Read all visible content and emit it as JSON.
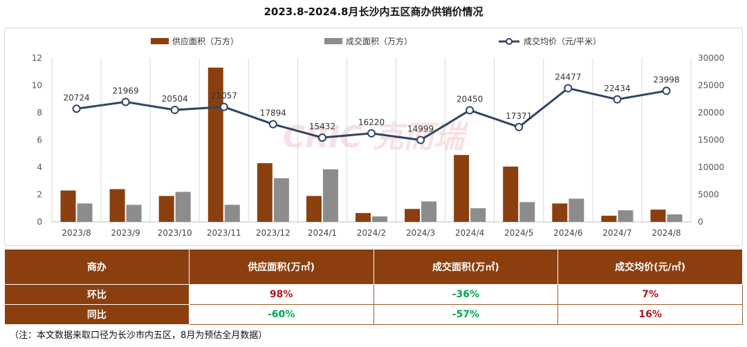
{
  "title": "2023.8-2024.8月长沙内五区商办供销价情况",
  "watermark": "CRIC 克而瑞",
  "chart_data": {
    "type": "bar+line",
    "categories": [
      "2023/8",
      "2023/9",
      "2023/10",
      "2023/11",
      "2023/12",
      "2024/1",
      "2024/2",
      "2024/3",
      "2024/4",
      "2024/5",
      "2024/6",
      "2024/7",
      "2024/8"
    ],
    "series": [
      {
        "name": "供应面积（万方）",
        "type": "bar",
        "axis": "left",
        "color": "#8b3f0f",
        "values": [
          2.3,
          2.4,
          1.9,
          11.3,
          4.3,
          1.9,
          0.65,
          0.95,
          4.9,
          4.05,
          1.35,
          0.45,
          0.9
        ]
      },
      {
        "name": "成交面积（万方）",
        "type": "bar",
        "axis": "left",
        "color": "#8c8c8c",
        "values": [
          1.35,
          1.25,
          2.2,
          1.25,
          3.2,
          3.85,
          0.4,
          1.5,
          1.0,
          1.45,
          1.7,
          0.85,
          0.55
        ]
      },
      {
        "name": "成交均价（元/平米）",
        "type": "line",
        "axis": "right",
        "color": "#2e4563",
        "values": [
          20724,
          21969,
          20504,
          21057,
          17894,
          15432,
          16220,
          14999,
          20450,
          17371,
          24477,
          22434,
          23998
        ]
      }
    ],
    "ylim_left": [
      0,
      12
    ],
    "yticks_left": [
      "0",
      "2",
      "4",
      "6",
      "8",
      "10",
      "12"
    ],
    "ylim_right": [
      0,
      30000
    ],
    "yticks_right": [
      "0",
      "5000",
      "10000",
      "15000",
      "20000",
      "25000",
      "30000"
    ],
    "grid": true,
    "legend": "top"
  },
  "table": {
    "headers": [
      "商办",
      "供应面积(万㎡)",
      "成交面积(万㎡)",
      "成交均价(元/㎡)"
    ],
    "rows": [
      {
        "label": "环比",
        "values": [
          "98%",
          "-36%",
          "7%"
        ]
      },
      {
        "label": "同比",
        "values": [
          "-60%",
          "-57%",
          "16%"
        ]
      }
    ]
  },
  "note": "（注：本文数据来取口径为长沙市内五区，8月为预估全月数据）",
  "colors": {
    "supply": "#8b3f0f",
    "deal": "#8c8c8c",
    "price": "#2e4563",
    "positive": "#b4131c",
    "negative": "#00a651"
  }
}
